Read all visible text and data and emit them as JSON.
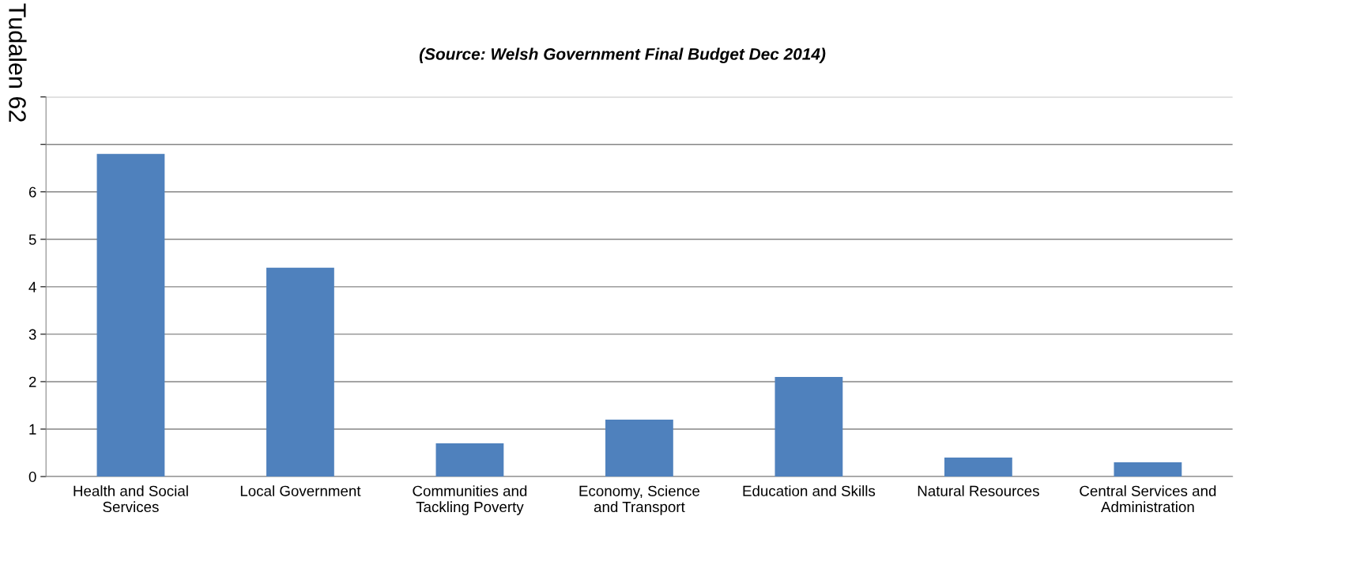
{
  "chart_data": {
    "type": "bar",
    "title": "(Source: Welsh Government Final Budget Dec 2014)",
    "categories": [
      "Health and Social\nServices",
      "Local Government",
      "Communities and\nTackling Poverty",
      "Economy, Science\nand Transport",
      "Education and Skills",
      "Natural Resources",
      "Central Services and\nAdministration"
    ],
    "values": [
      6.8,
      4.4,
      0.7,
      1.2,
      2.1,
      0.4,
      0.3
    ],
    "color": "#4f81bd",
    "ylim": [
      0,
      8
    ],
    "yticks": [
      0,
      1,
      2,
      3,
      4,
      5,
      6,
      {
        "value": 7,
        "label": null
      },
      {
        "value": 8,
        "label": null
      }
    ],
    "grid": "y",
    "annotations": [
      "Tudalen 62"
    ]
  }
}
